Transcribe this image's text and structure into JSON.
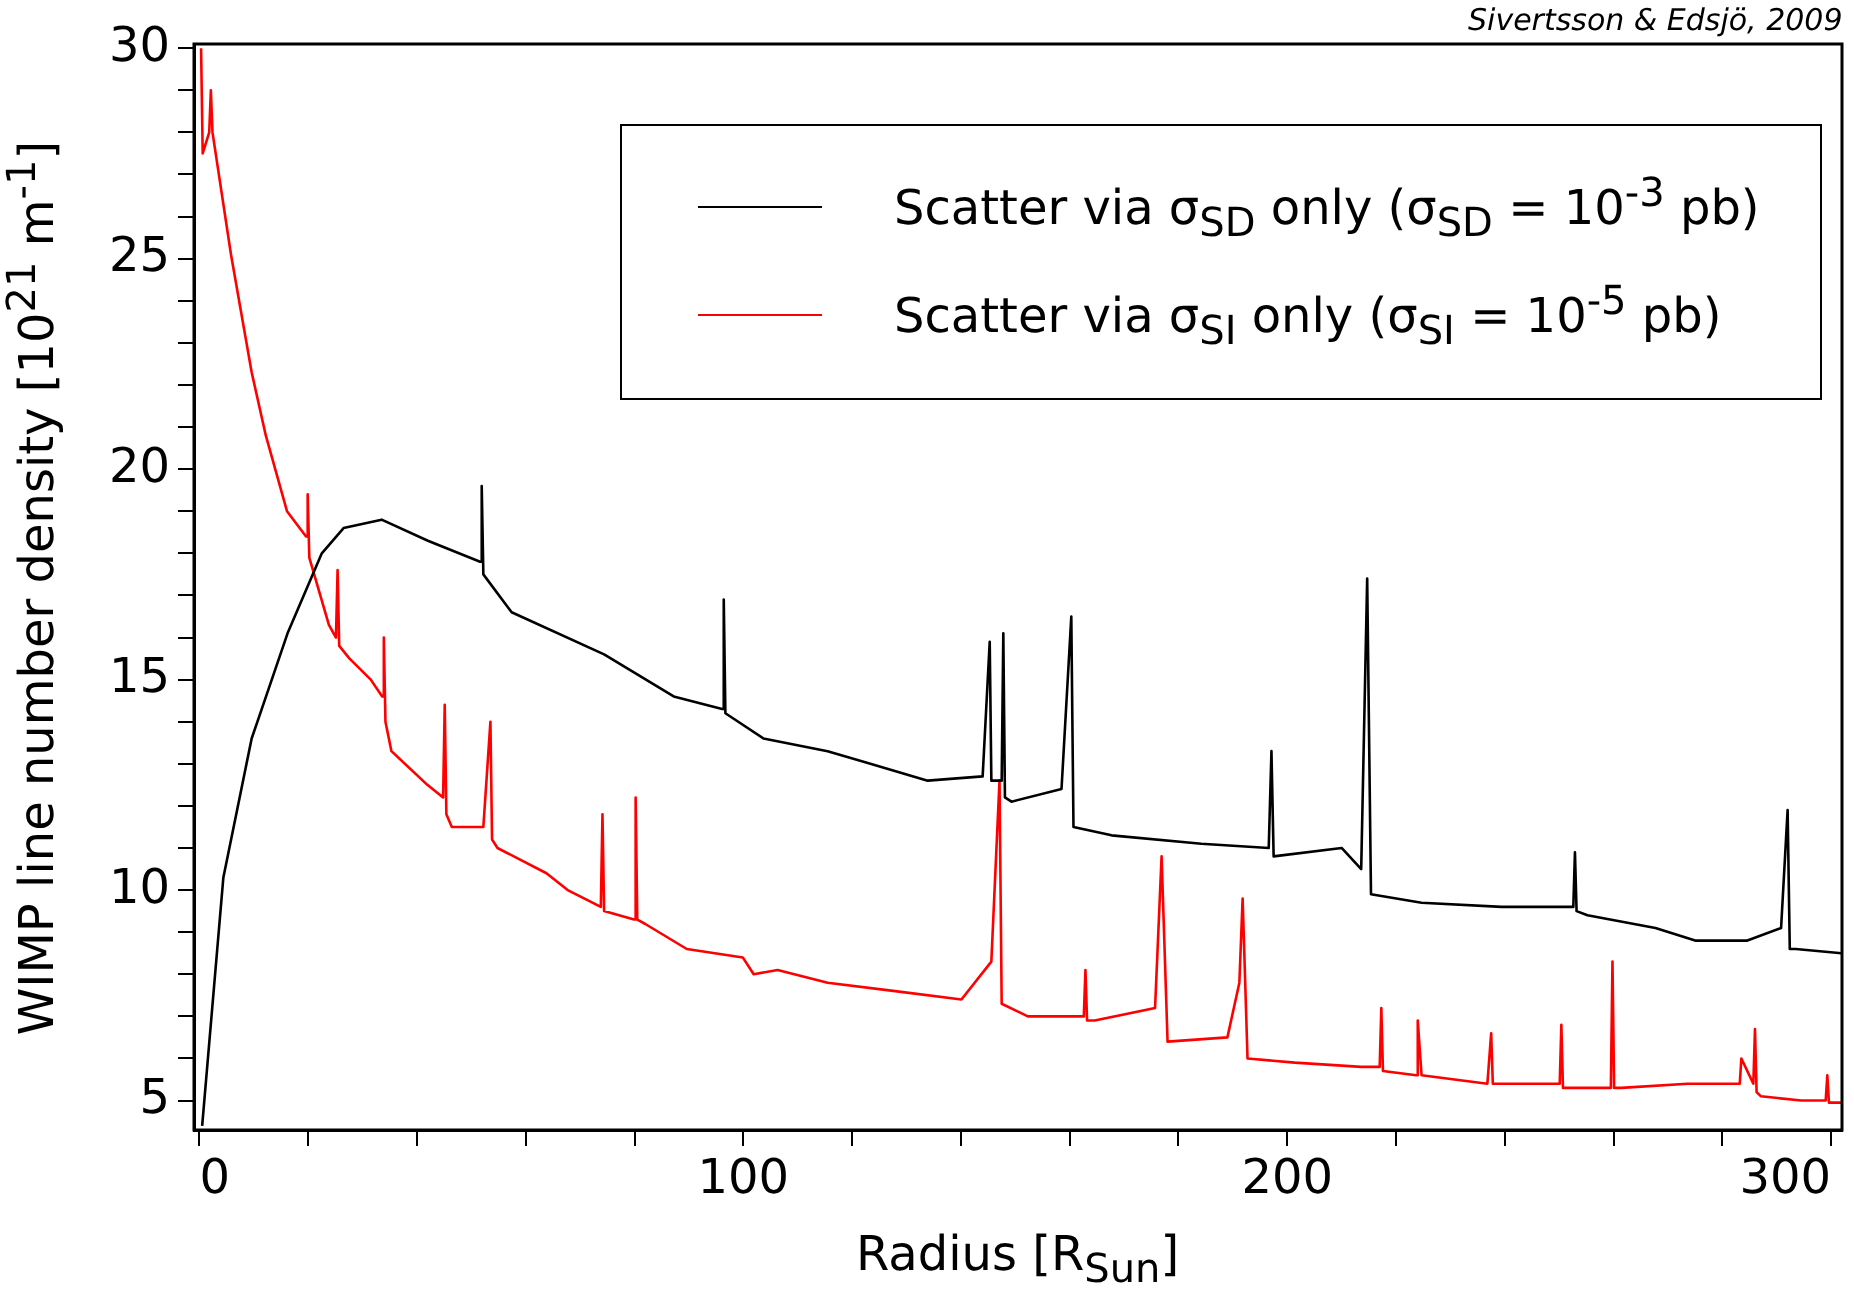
{
  "chart_data": {
    "type": "line",
    "xlabel": "Radius [R$_{Sun}$]",
    "ylabel": "WIMP line number density [10$^{21}$ m$^{-1}$]",
    "annotations": [
      "Sivertsson & Edsjö, 2009"
    ],
    "xlim": [
      -1,
      302
    ],
    "ylim": [
      4.3,
      30.1
    ],
    "xticks": [
      0,
      {
        "value": 20,
        "label": null
      },
      {
        "value": 40,
        "label": null
      },
      {
        "value": 60,
        "label": null
      },
      {
        "value": 80,
        "label": null
      },
      100,
      {
        "value": 120,
        "label": null
      },
      {
        "value": 140,
        "label": null
      },
      {
        "value": 160,
        "label": null
      },
      {
        "value": 180,
        "label": null
      },
      200,
      {
        "value": 220,
        "label": null
      },
      {
        "value": 240,
        "label": null
      },
      {
        "value": 260,
        "label": null
      },
      {
        "value": 280,
        "label": null
      },
      300
    ],
    "yticks": [
      5,
      {
        "value": 6,
        "label": null
      },
      {
        "value": 7,
        "label": null
      },
      {
        "value": 8,
        "label": null
      },
      {
        "value": 9,
        "label": null
      },
      10,
      {
        "value": 11,
        "label": null
      },
      {
        "value": 12,
        "label": null
      },
      {
        "value": 13,
        "label": null
      },
      {
        "value": 14,
        "label": null
      },
      15,
      {
        "value": 16,
        "label": null
      },
      {
        "value": 17,
        "label": null
      },
      {
        "value": 18,
        "label": null
      },
      {
        "value": 19,
        "label": null
      },
      20,
      {
        "value": 21,
        "label": null
      },
      {
        "value": 22,
        "label": null
      },
      {
        "value": 23,
        "label": null
      },
      {
        "value": 24,
        "label": null
      },
      25,
      {
        "value": 26,
        "label": null
      },
      {
        "value": 27,
        "label": null
      },
      {
        "value": 28,
        "label": null
      },
      {
        "value": 29,
        "label": null
      },
      30
    ],
    "grid": false,
    "legend": "top right",
    "marker": "none",
    "line_style": "solid",
    "series": [
      {
        "name": "Scatter via σ$_{SD}$ only (σ$_{SD}$ = 10$^{-3}$ pb)",
        "color": "#000000",
        "x": [
          0.5,
          4.4,
          9.6,
          16.2,
          22.5,
          26.5,
          33.5,
          42,
          51.6,
          51.9,
          52.2,
          57.4,
          74.4,
          87.2,
          96.1,
          96.4,
          96.7,
          103.7,
          115.5,
          133.9,
          144,
          145.3,
          145.6,
          147.5,
          147.8,
          148.1,
          149.3,
          158.5,
          160.3,
          160.7,
          167.7,
          184.2,
          196.6,
          197.1,
          197.5,
          210,
          213.6,
          214.7,
          215.4,
          224.7,
          239.4,
          252.6,
          252.9,
          253.2,
          255.2,
          267.7,
          275,
          284.6,
          290.8,
          292,
          292.4,
          293.5,
          301.9
        ],
        "values": [
          4.4,
          10.3,
          13.6,
          16.1,
          18.0,
          18.6,
          18.8,
          18.3,
          17.8,
          19.6,
          17.5,
          16.6,
          15.6,
          14.6,
          14.3,
          16.9,
          14.2,
          13.6,
          13.3,
          12.6,
          12.7,
          15.9,
          12.6,
          12.6,
          16.1,
          12.2,
          12.1,
          12.4,
          16.5,
          11.5,
          11.3,
          11.1,
          11.0,
          13.3,
          10.8,
          11.0,
          10.5,
          17.4,
          9.9,
          9.7,
          9.6,
          9.6,
          10.9,
          9.5,
          9.4,
          9.1,
          8.8,
          8.8,
          9.1,
          11.9,
          8.6,
          8.6,
          8.5
        ]
      },
      {
        "name": "Scatter via σ$_{SI}$ only (σ$_{SI}$ = 10$^{-5}$ pb)",
        "color": "#ff0000",
        "x": [
          0.3,
          0.6,
          1.8,
          2.1,
          2.4,
          5.8,
          9.6,
          12.2,
          16.1,
          19.6,
          19.9,
          20.2,
          23.8,
          25.1,
          25.4,
          25.7,
          27.6,
          31.5,
          33.6,
          33.9,
          34.2,
          35.3,
          41.9,
          44.8,
          45.1,
          45.4,
          46.4,
          52.2,
          53.5,
          53.8,
          54.8,
          63.8,
          67.7,
          73.8,
          74.1,
          74.4,
          79.9,
          80.2,
          80.5,
          81.9,
          89.6,
          99.9,
          101.9,
          106.3,
          115.5,
          127.9,
          140.1,
          145.6,
          147.1,
          147.5,
          152.3,
          162.6,
          162.9,
          163.2,
          164.6,
          175.7,
          176.9,
          178,
          189,
          191.2,
          191.8,
          192.7,
          201.4,
          213.6,
          217,
          217.3,
          217.6,
          223.7,
          224,
          224.7,
          236.8,
          237.5,
          237.8,
          250.1,
          250.4,
          250.7,
          255.2,
          259.5,
          259.8,
          260.1,
          261.4,
          273.6,
          283.2,
          283.5,
          285.7,
          286,
          286.3,
          287.1,
          294.5,
          299,
          299.3,
          299.6,
          301.9
        ],
        "values": [
          30.0,
          27.5,
          28.0,
          29.0,
          28.0,
          25.1,
          22.3,
          20.8,
          19.0,
          18.4,
          19.4,
          17.9,
          16.3,
          16.0,
          17.6,
          15.8,
          15.5,
          15.0,
          14.6,
          16.0,
          14.0,
          13.3,
          12.5,
          12.2,
          14.4,
          11.8,
          11.5,
          11.5,
          14.0,
          11.2,
          11.0,
          10.4,
          10.0,
          9.6,
          11.8,
          9.5,
          9.3,
          12.2,
          9.3,
          9.2,
          8.6,
          8.4,
          8.0,
          8.1,
          7.8,
          7.6,
          7.4,
          8.3,
          12.6,
          7.3,
          7.0,
          7.0,
          8.1,
          6.9,
          6.9,
          7.2,
          10.8,
          6.4,
          6.5,
          7.8,
          9.8,
          6.0,
          5.9,
          5.8,
          5.8,
          7.2,
          5.7,
          5.6,
          6.9,
          5.6,
          5.4,
          6.6,
          5.4,
          5.4,
          6.8,
          5.3,
          5.3,
          5.3,
          8.3,
          5.3,
          5.3,
          5.4,
          5.4,
          6.0,
          5.4,
          6.7,
          5.2,
          5.1,
          5.0,
          5.0,
          5.6,
          4.95,
          4.95
        ]
      }
    ]
  }
}
